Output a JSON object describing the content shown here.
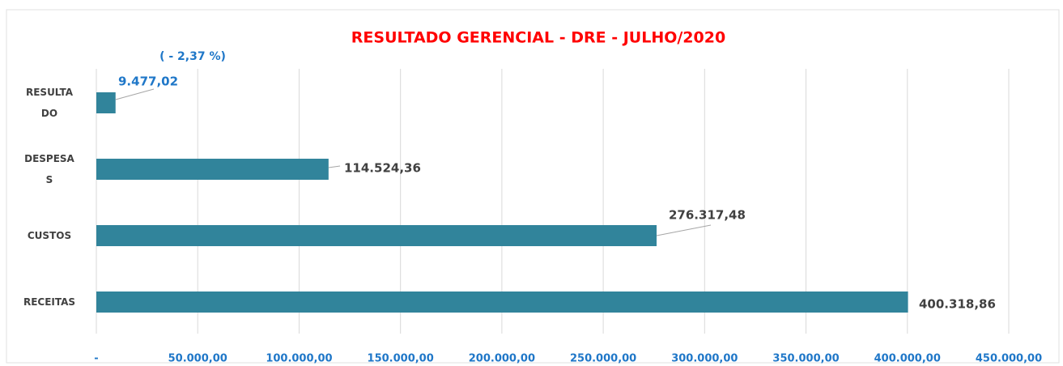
{
  "chart_data": {
    "type": "bar",
    "orientation": "horizontal",
    "title": "RESULTADO GERENCIAL - DRE -  JULHO/2020",
    "annotation": "(  - 2,37 %)",
    "categories": [
      "RESULTADO",
      "DESPESAS",
      "CUSTOS",
      "RECEITAS"
    ],
    "values": [
      9477.02,
      114524.36,
      276317.48,
      400318.86
    ],
    "value_labels": [
      "9.477,02",
      "114.524,36",
      "276.317,48",
      "400.318,86"
    ],
    "color": "#31849b",
    "xlim": [
      0,
      450000
    ],
    "xticks": [
      {
        "value": 0,
        "label": "-"
      },
      {
        "value": 50000,
        "label": "50.000,00"
      },
      {
        "value": 100000,
        "label": "100.000,00"
      },
      {
        "value": 150000,
        "label": "150.000,00"
      },
      {
        "value": 200000,
        "label": "200.000,00"
      },
      {
        "value": 250000,
        "label": "250.000,00"
      },
      {
        "value": 300000,
        "label": "300.000,00"
      },
      {
        "value": 350000,
        "label": "350.000,00"
      },
      {
        "value": 400000,
        "label": "400.000,00"
      },
      {
        "value": 450000,
        "label": "450.000,00"
      }
    ],
    "grid": true
  }
}
